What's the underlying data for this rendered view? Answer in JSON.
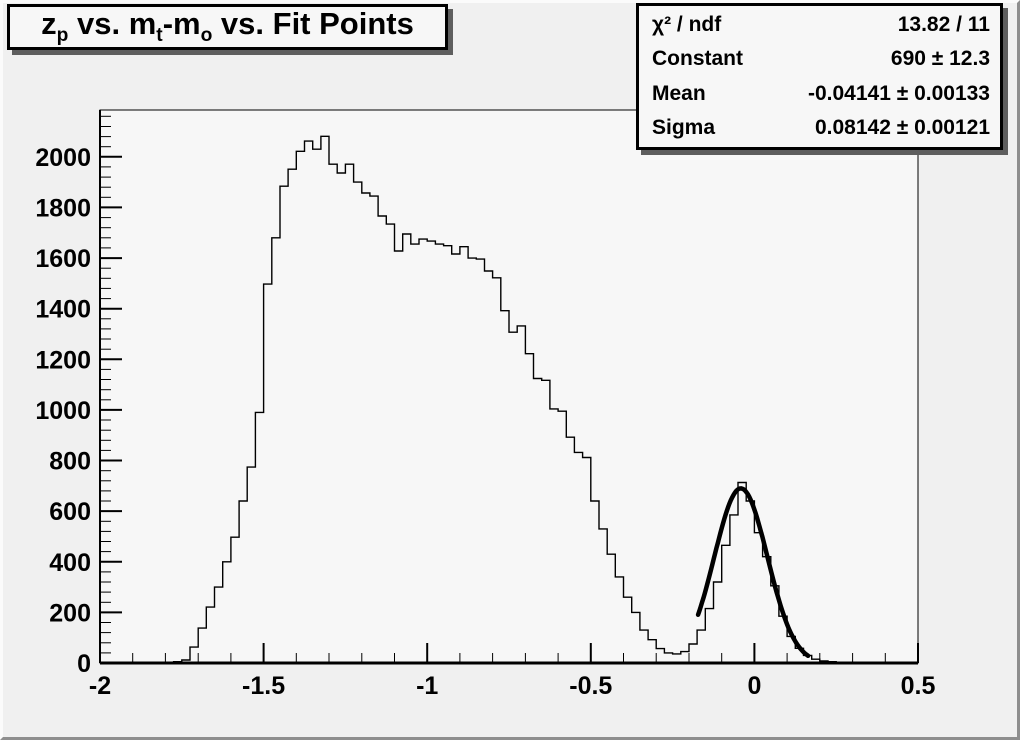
{
  "canvas": {
    "background": "#f0f0f0",
    "frame_background": "#f7f7f7",
    "border_highlight": "#fbfbfb",
    "border_shadow": "#8e8e8e",
    "line_color": "#000000"
  },
  "title": {
    "plain": "z_p vs. m_t-m_o vs. Fit Points",
    "segments": [
      {
        "t": "z"
      },
      {
        "t": "p",
        "sub": true
      },
      {
        "t": " vs. m"
      },
      {
        "t": "t",
        "sub": true
      },
      {
        "t": "-m"
      },
      {
        "t": "o",
        "sub": true
      },
      {
        "t": " vs. Fit Points"
      }
    ]
  },
  "stats_box": {
    "rows": [
      {
        "label": "χ² / ndf",
        "value": "13.82 / 11"
      },
      {
        "label": "Constant",
        "value": "690 ± 12.3"
      },
      {
        "label": "Mean",
        "value": "-0.04141 ± 0.00133"
      },
      {
        "label": "Sigma",
        "value": "0.08142 ± 0.00121"
      }
    ]
  },
  "chart_data": {
    "type": "bar",
    "subtype": "histogram-step",
    "title": "z_p vs. m_t-m_o vs. Fit Points",
    "xlabel": "",
    "ylabel": "",
    "grid": false,
    "legend": false,
    "x_axis": {
      "min": -2.0,
      "max": 0.5,
      "major_step": 0.5,
      "minor_step": 0.1,
      "tick_labels": [
        {
          "v": -2.0,
          "label": "-2"
        },
        {
          "v": -1.5,
          "label": "-1.5"
        },
        {
          "v": -1.0,
          "label": "-1"
        },
        {
          "v": -0.5,
          "label": "-0.5"
        },
        {
          "v": 0.0,
          "label": "0"
        },
        {
          "v": 0.5,
          "label": "0.5"
        }
      ]
    },
    "y_axis": {
      "min": 0,
      "max": 2185,
      "major_step": 200,
      "minor_step": 40,
      "tick_labels": [
        "0",
        "200",
        "400",
        "600",
        "800",
        "1000",
        "1200",
        "1400",
        "1600",
        "1800",
        "2000"
      ]
    },
    "bin_width": 0.025,
    "n_bins": 100,
    "bin_start": -2.0,
    "values": [
      0,
      0,
      0,
      0,
      0,
      0,
      0,
      0,
      2,
      5,
      12,
      63,
      138,
      221,
      300,
      400,
      497,
      640,
      774,
      990,
      1497,
      1680,
      1884,
      1951,
      2022,
      2062,
      2030,
      2081,
      1971,
      1936,
      1971,
      1900,
      1857,
      1845,
      1766,
      1734,
      1628,
      1695,
      1655,
      1675,
      1667,
      1655,
      1649,
      1616,
      1645,
      1600,
      1596,
      1549,
      1522,
      1392,
      1307,
      1332,
      1222,
      1124,
      1117,
      1004,
      995,
      892,
      832,
      812,
      640,
      530,
      430,
      340,
      260,
      200,
      130,
      92,
      57,
      40,
      36,
      45,
      75,
      130,
      215,
      320,
      465,
      585,
      713,
      640,
      515,
      420,
      305,
      185,
      105,
      58,
      30,
      15,
      8,
      5,
      3,
      1,
      0,
      0,
      0,
      0,
      0,
      0,
      0,
      0
    ],
    "fit": {
      "shape": "gaussian",
      "constant": 690,
      "mean": -0.04141,
      "sigma": 0.08142,
      "chi2": 13.82,
      "ndf": 11,
      "draw_range": [
        -0.172,
        0.165
      ]
    }
  }
}
